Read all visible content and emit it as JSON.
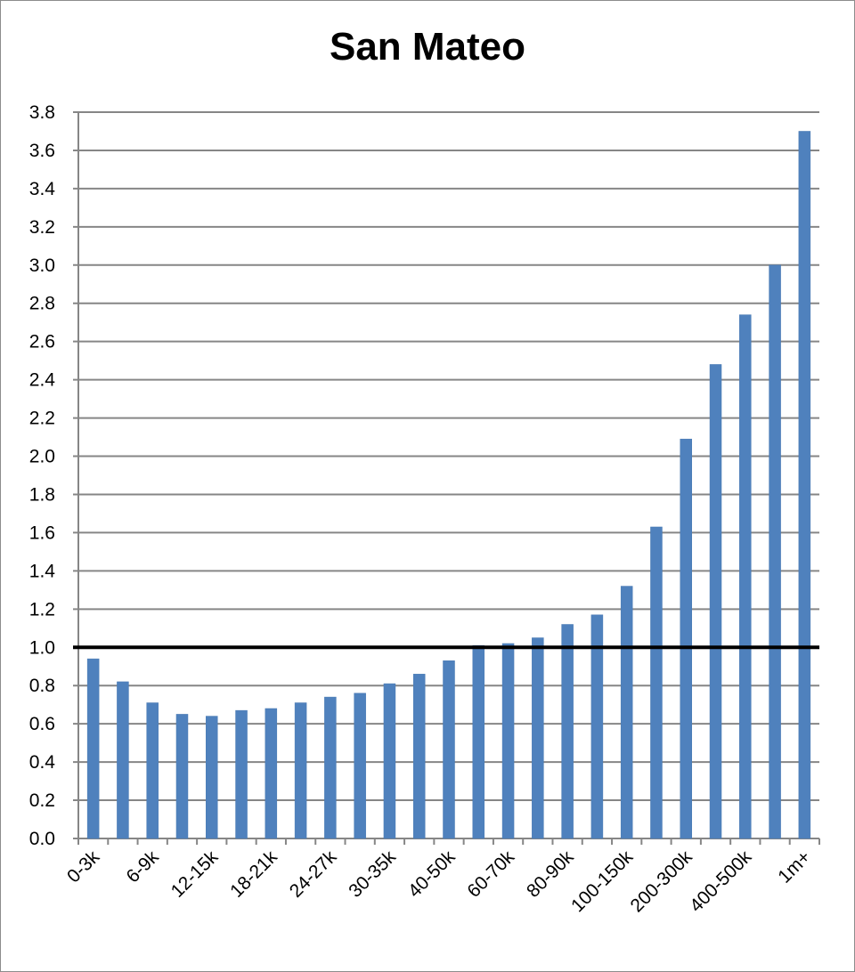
{
  "chart_data": {
    "type": "bar",
    "title": "San Mateo",
    "xlabel": "",
    "ylabel": "",
    "ylim": [
      0,
      3.8
    ],
    "yticks": [
      "0.0",
      "0.2",
      "0.4",
      "0.6",
      "0.8",
      "1.0",
      "1.2",
      "1.4",
      "1.6",
      "1.8",
      "2.0",
      "2.2",
      "2.4",
      "2.6",
      "2.8",
      "3.0",
      "3.2",
      "3.4",
      "3.6",
      "3.8"
    ],
    "categories": [
      "0-3k",
      "",
      "6-9k",
      "",
      "12-15k",
      "",
      "18-21k",
      "",
      "24-27k",
      "",
      "30-35k",
      "",
      "40-50k",
      "",
      "60-70k",
      "",
      "80-90k",
      "",
      "100-150k",
      "",
      "200-300k",
      "",
      "400-500k",
      "",
      "1m+"
    ],
    "values": [
      0.94,
      0.82,
      0.71,
      0.65,
      0.64,
      0.67,
      0.68,
      0.71,
      0.74,
      0.76,
      0.81,
      0.86,
      0.93,
      1.01,
      1.02,
      1.05,
      1.12,
      1.17,
      1.32,
      1.63,
      2.09,
      2.48,
      2.74,
      3.0,
      3.7
    ],
    "reference_line": 1.0,
    "grid": true,
    "legend": "none",
    "colors": {
      "bar": "#4f81bd",
      "grid": "#868686",
      "reference_line": "#000000"
    }
  }
}
